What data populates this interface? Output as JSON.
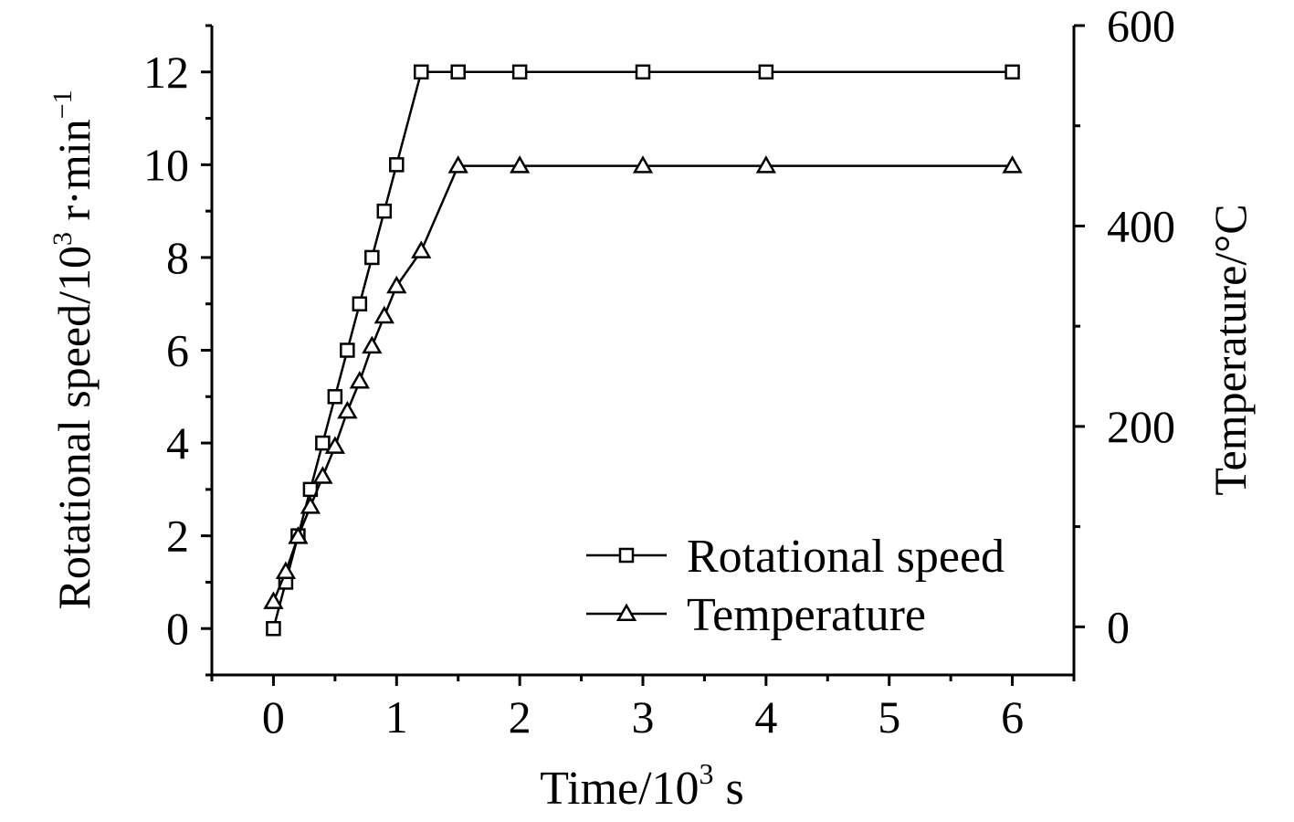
{
  "chart_data": {
    "type": "line",
    "xlabel_prefix": "Time/10",
    "xlabel_sup": "3",
    "xlabel_suffix": " s",
    "ylabel_left_prefix": "Rotational speed/10",
    "ylabel_left_sup": "3",
    "ylabel_left_mid": " r·min",
    "ylabel_left_sup2": "−1",
    "ylabel_right": "Temperature/°C",
    "xlim": [
      -0.5,
      6.5
    ],
    "ylim_left": [
      -1,
      13
    ],
    "ylim_right": [
      -48,
      600
    ],
    "x_ticks": [
      "0",
      "1",
      "2",
      "3",
      "4",
      "5",
      "6"
    ],
    "y_left_ticks": [
      "0",
      "2",
      "4",
      "6",
      "8",
      "10",
      "12"
    ],
    "y_right_ticks": [
      "0",
      "200",
      "400",
      "600"
    ],
    "legend_position": "bottom-right",
    "series": [
      {
        "name": "Rotational speed",
        "axis": "left",
        "marker": "square",
        "x": [
          0,
          0.1,
          0.2,
          0.3,
          0.4,
          0.5,
          0.6,
          0.7,
          0.8,
          0.9,
          1.0,
          1.2,
          1.5,
          2,
          3,
          4,
          6
        ],
        "y": [
          0,
          1,
          2,
          3,
          4,
          5,
          6,
          7,
          8,
          9,
          10,
          12,
          12,
          12,
          12,
          12,
          12
        ]
      },
      {
        "name": "Temperature",
        "axis": "right",
        "marker": "triangle",
        "x": [
          0,
          0.1,
          0.2,
          0.3,
          0.4,
          0.5,
          0.6,
          0.7,
          0.8,
          0.9,
          1.0,
          1.2,
          1.5,
          2,
          3,
          4,
          6
        ],
        "y": [
          25,
          55,
          90,
          120,
          150,
          180,
          215,
          245,
          280,
          310,
          340,
          375,
          460,
          460,
          460,
          460,
          460
        ]
      }
    ]
  }
}
